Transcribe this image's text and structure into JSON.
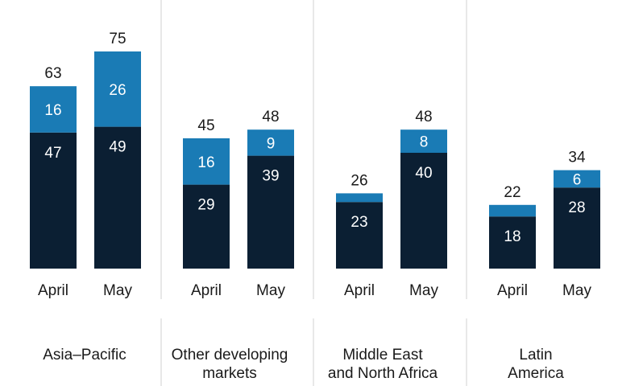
{
  "chart_data": {
    "type": "bar",
    "stacked": true,
    "groups": [
      {
        "name": "Asia–Pacific",
        "name_lines": [
          "Asia–Pacific"
        ],
        "bars": [
          {
            "label": "April",
            "bottom": 47,
            "top": 16,
            "total": 63
          },
          {
            "label": "May",
            "bottom": 49,
            "top": 26,
            "total": 75
          }
        ]
      },
      {
        "name": "Other developing markets",
        "name_lines": [
          "Other developing",
          "markets"
        ],
        "bars": [
          {
            "label": "April",
            "bottom": 29,
            "top": 16,
            "total": 45
          },
          {
            "label": "May",
            "bottom": 39,
            "top": 9,
            "total": 48
          }
        ]
      },
      {
        "name": "Middle East and North Africa",
        "name_lines": [
          "Middle East",
          "and North Africa"
        ],
        "bars": [
          {
            "label": "April",
            "bottom": 23,
            "top": 3,
            "total": 26,
            "top_label_shown": false
          },
          {
            "label": "May",
            "bottom": 40,
            "top": 8,
            "total": 48
          }
        ]
      },
      {
        "name": "Latin America",
        "name_lines": [
          "Latin",
          "America"
        ],
        "bars": [
          {
            "label": "April",
            "bottom": 18,
            "top": 4,
            "total": 22,
            "top_label_shown": false
          },
          {
            "label": "May",
            "bottom": 28,
            "top": 6,
            "total": 34
          }
        ]
      }
    ],
    "ylim": [
      0,
      80
    ],
    "grid": false,
    "title": "",
    "xlabel": "",
    "ylabel": "",
    "colors": {
      "bottom": "#0b1f33",
      "top": "#1a7bb5",
      "divider": "#d0d0d0",
      "text": "#1a1a1a",
      "bar_text": "#ffffff"
    }
  }
}
